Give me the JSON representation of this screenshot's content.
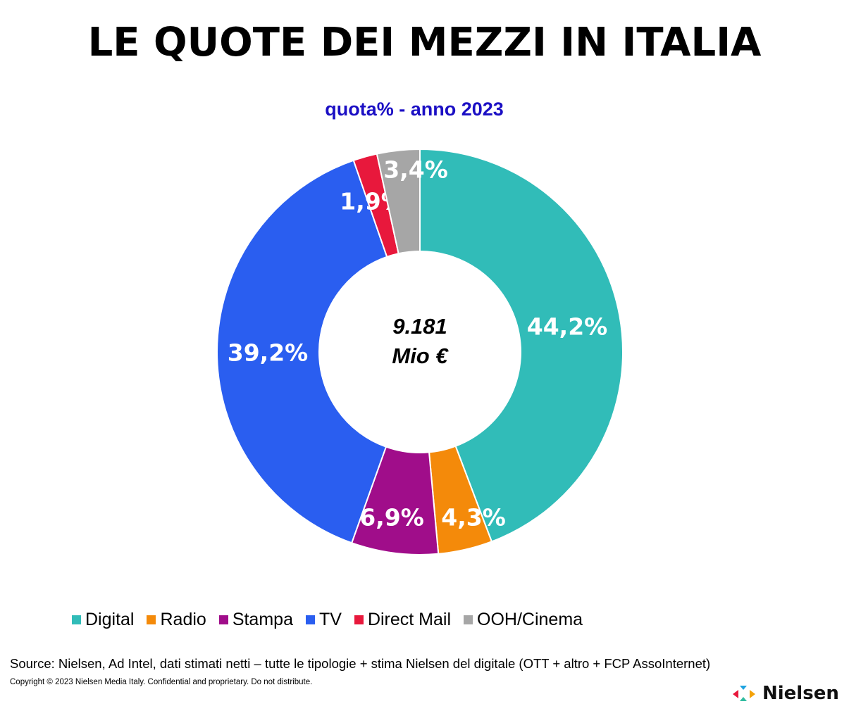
{
  "header": {
    "title": "LE QUOTE DEI MEZZI IN ITALIA",
    "subtitle": "quota% - anno 2023"
  },
  "chart_data": {
    "type": "pie",
    "title": "LE QUOTE DEI MEZZI IN ITALIA",
    "subtitle": "quota% - anno 2023",
    "donut": true,
    "center_label": [
      "9.181",
      "Mio €"
    ],
    "categories": [
      "Digital",
      "Radio",
      "Stampa",
      "TV",
      "Direct Mail",
      "OOH/Cinema"
    ],
    "values": [
      44.2,
      4.3,
      6.9,
      39.2,
      1.9,
      3.4
    ],
    "labels": [
      "44,2%",
      "4,3%",
      "6,9%",
      "39,2%",
      "1,9%",
      "3,4%"
    ],
    "colors": [
      "#31bcb8",
      "#f48a0a",
      "#a00d8a",
      "#2a5ef0",
      "#e8183c",
      "#a6a6a6"
    ],
    "legend_position": "bottom"
  },
  "footer": {
    "source": "Source: Nielsen, Ad Intel, dati stimati netti – tutte le tipologie + stima Nielsen del digitale (OTT  + altro +  FCP AssoInternet)",
    "copyright": "Copyright © 2023 Nielsen Media Italy. Confidential and proprietary. Do not distribute.",
    "logo_text": "Nielsen",
    "logo_colors": [
      "#e8183c",
      "#1fa3e0",
      "#f4a20a",
      "#31bca0"
    ]
  }
}
